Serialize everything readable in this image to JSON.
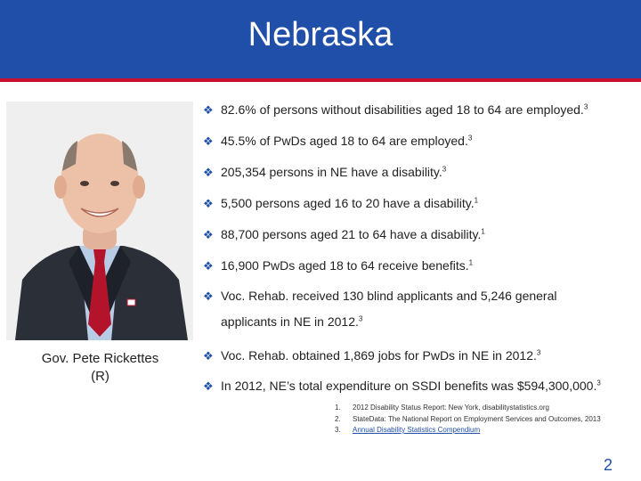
{
  "header": {
    "title": "Nebraska"
  },
  "photo": {
    "caption_line1": "Gov. Pete Rickettes",
    "caption_line2": "(R)"
  },
  "bullets": [
    {
      "text": "82.6% of persons without disabilities aged 18 to 64 are employed.",
      "ref": "3"
    },
    {
      "text": "45.5% of PwDs aged 18 to 64 are employed.",
      "ref": "3"
    },
    {
      "text": "205,354 persons in NE have a disability.",
      "ref": "3"
    },
    {
      "text": "5,500 persons aged 16 to 20 have a disability.",
      "ref": "1"
    },
    {
      "text": "88,700 persons aged 21 to 64 have a disability.",
      "ref": "1"
    },
    {
      "text": "16,900 PwDs aged 18 to 64 receive benefits.",
      "ref": "1"
    },
    {
      "text": "Voc. Rehab. received 130 blind applicants and 5,246 general",
      "cont": "applicants in NE in 2012.",
      "ref": "3"
    },
    {
      "text": "Voc. Rehab. obtained 1,869 jobs for PwDs in NE in 2012.",
      "ref": "3"
    },
    {
      "text": "In 2012, NE’s total expenditure on SSDI benefits was $594,300,000.",
      "ref": "3"
    }
  ],
  "footnotes": [
    {
      "num": "1.",
      "text": "2012 Disability Status Report: New York, disabilitystatistics.org"
    },
    {
      "num": "2.",
      "text": "StateData: The National Report on Employment Services and Outcomes, 2013"
    },
    {
      "num": "3.",
      "text": "Annual Disability Statistics Compendium"
    }
  ],
  "page_number": "2",
  "colors": {
    "header_blue": "#1f4fa8",
    "header_red": "#c8102e"
  }
}
